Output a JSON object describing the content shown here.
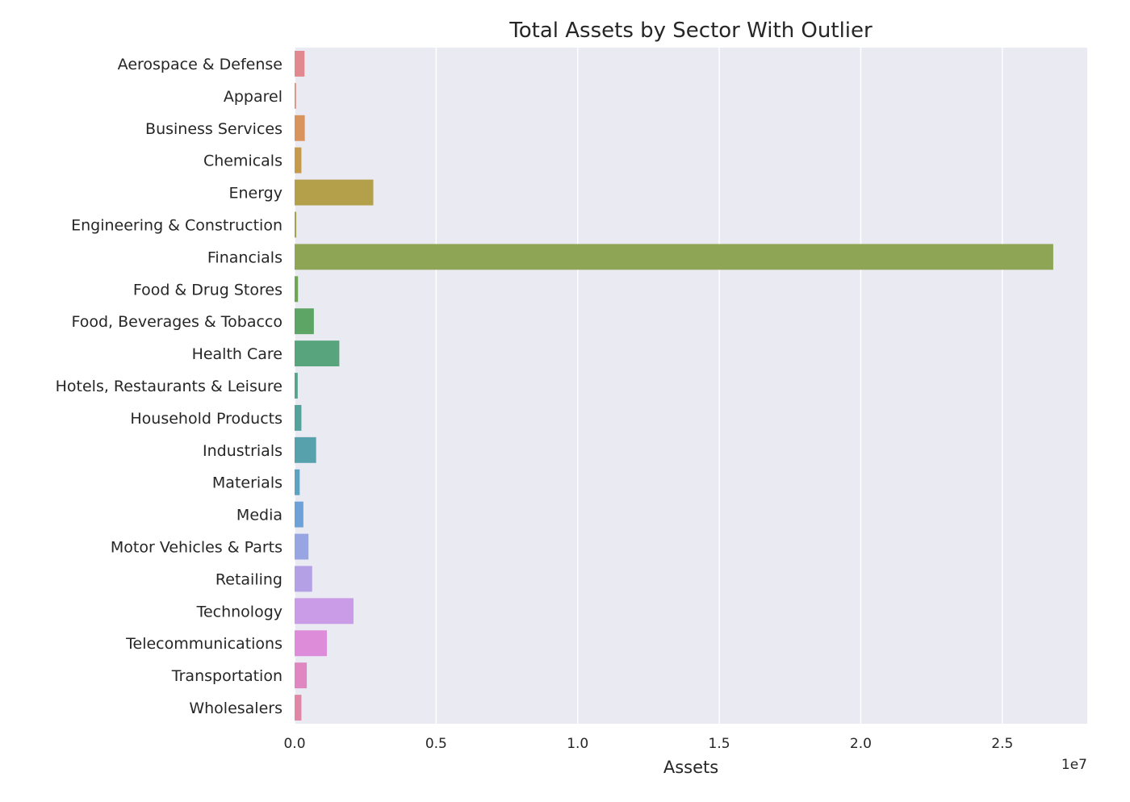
{
  "chart_data": {
    "type": "bar",
    "orientation": "horizontal",
    "title": "Total Assets by Sector With Outlier",
    "xlabel": "Assets",
    "ylabel": "",
    "xlim": [
      0,
      2.8
    ],
    "x_offset_label": "1e7",
    "x_ticks": [
      0.0,
      0.5,
      1.0,
      1.5,
      2.0,
      2.5
    ],
    "x_tick_labels": [
      "0.0",
      "0.5",
      "1.0",
      "1.5",
      "2.0",
      "2.5"
    ],
    "grid": "x",
    "background": "#eaeaf2",
    "categories": [
      "Aerospace & Defense",
      "Apparel",
      "Business Services",
      "Chemicals",
      "Energy",
      "Engineering & Construction",
      "Financials",
      "Food & Drug Stores",
      "Food, Beverages & Tobacco",
      "Health Care",
      "Hotels, Restaurants & Leisure",
      "Household Products",
      "Industrials",
      "Materials",
      "Media",
      "Motor Vehicles & Parts",
      "Retailing",
      "Technology",
      "Telecommunications",
      "Transportation",
      "Wholesalers"
    ],
    "values": [
      0.035,
      0.005,
      0.036,
      0.024,
      0.278,
      0.006,
      2.68,
      0.012,
      0.068,
      0.158,
      0.011,
      0.024,
      0.076,
      0.018,
      0.031,
      0.049,
      0.062,
      0.208,
      0.114,
      0.043,
      0.024
    ],
    "colors": [
      "#e1898f",
      "#e08c79",
      "#d9935d",
      "#c69a4b",
      "#b49f4b",
      "#a6a350",
      "#8fa556",
      "#6ea656",
      "#5ca564",
      "#58a47c",
      "#58a38e",
      "#55a19c",
      "#57a1ad",
      "#5ea2c1",
      "#6da2d8",
      "#97a6e3",
      "#b4a0e5",
      "#ca9be6",
      "#dd8cd9",
      "#e086c0",
      "#e087a7"
    ]
  }
}
